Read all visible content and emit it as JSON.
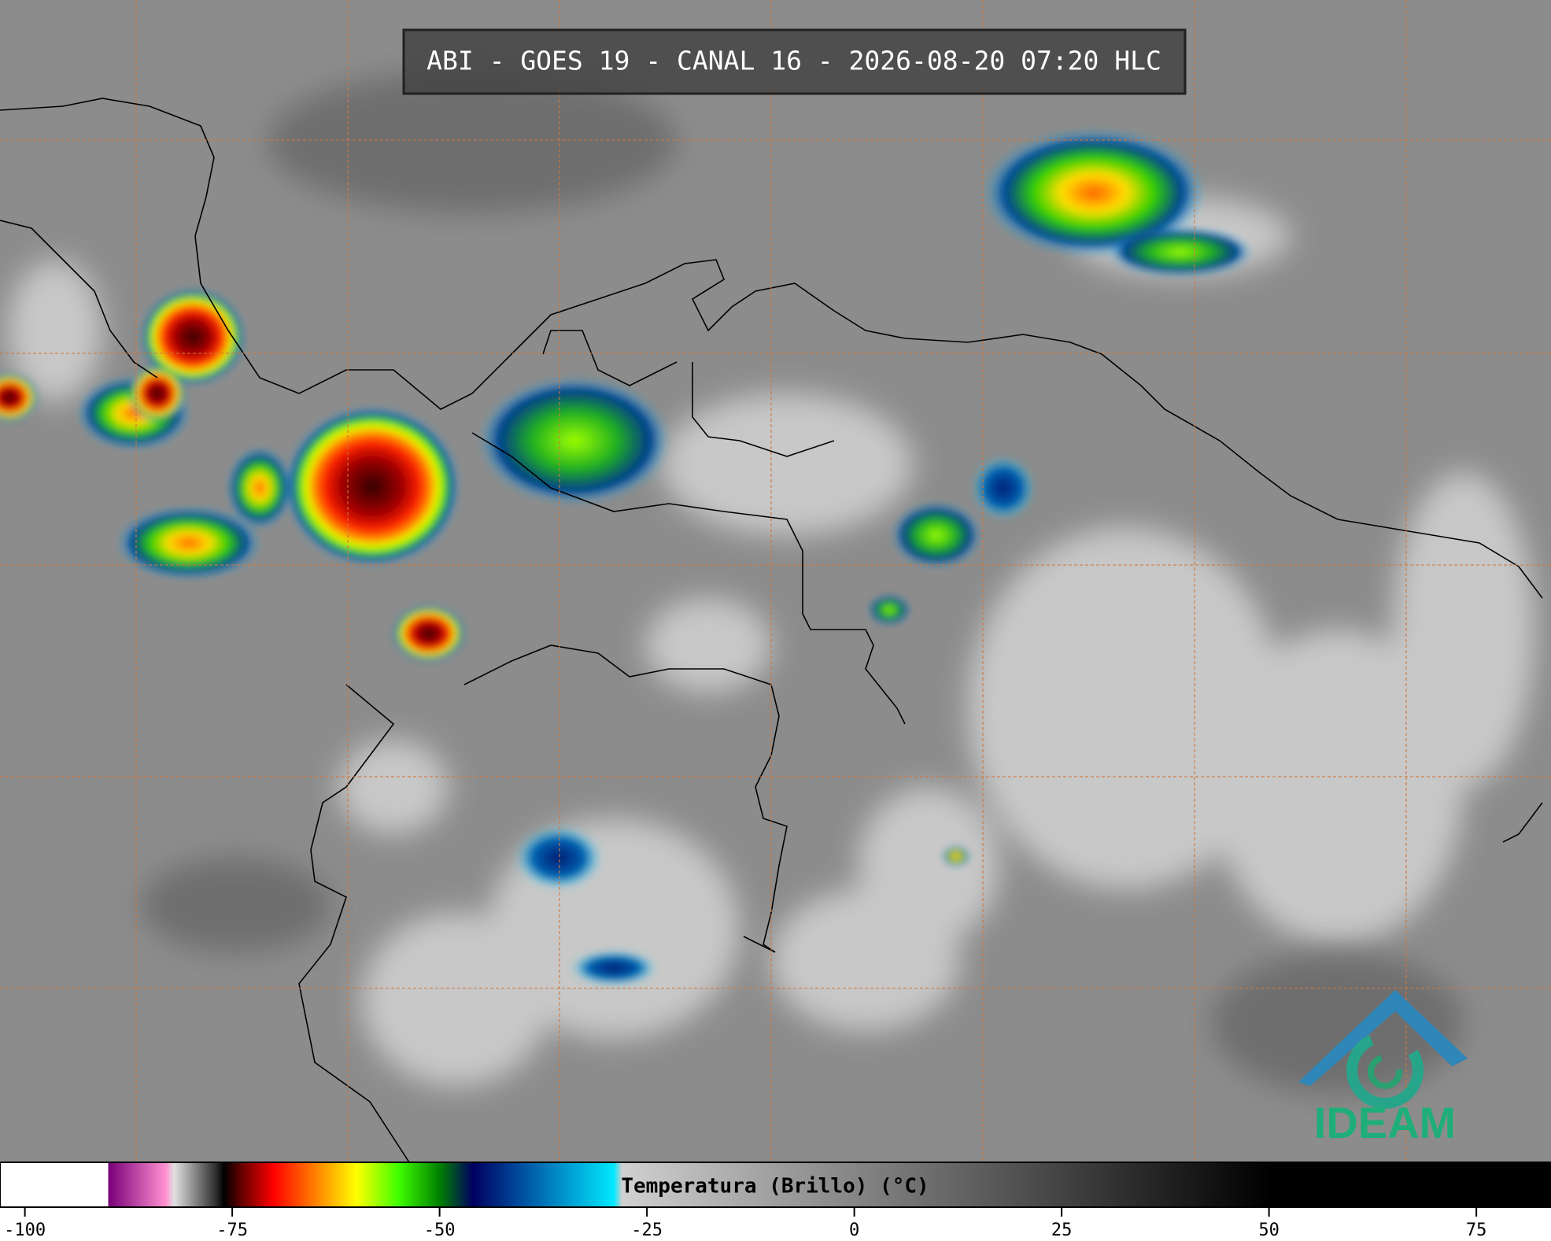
{
  "header": {
    "title": "ABI - GOES 19 - CANAL 16 - 2026-08-20 07:20 HLC"
  },
  "colorbar": {
    "label": "Temperatura (Brillo) (°C)",
    "range": [
      -103,
      84
    ],
    "ticks": [
      -100,
      -75,
      -50,
      -25,
      0,
      25,
      50,
      75
    ],
    "colormap": [
      {
        "value": -103,
        "color": "#ffffff"
      },
      {
        "value": -90,
        "color": "#ffffff"
      },
      {
        "value": -89.9,
        "color": "#7a007a"
      },
      {
        "value": -83,
        "color": "#ff90d0"
      },
      {
        "value": -82,
        "color": "#e0e0e0"
      },
      {
        "value": -77,
        "color": "#303030"
      },
      {
        "value": -76,
        "color": "#000000"
      },
      {
        "value": -74,
        "color": "#600000"
      },
      {
        "value": -70,
        "color": "#ff0000"
      },
      {
        "value": -65,
        "color": "#ff8000"
      },
      {
        "value": -60,
        "color": "#ffff00"
      },
      {
        "value": -55,
        "color": "#40ff00"
      },
      {
        "value": -50,
        "color": "#008000"
      },
      {
        "value": -46,
        "color": "#000060"
      },
      {
        "value": -40,
        "color": "#0050a0"
      },
      {
        "value": -29,
        "color": "#00e8ff"
      },
      {
        "value": -28,
        "color": "#d0d0d0"
      },
      {
        "value": 50,
        "color": "#000000"
      },
      {
        "value": 84,
        "color": "#000000"
      }
    ]
  },
  "logo": {
    "text": "IDEAM"
  }
}
